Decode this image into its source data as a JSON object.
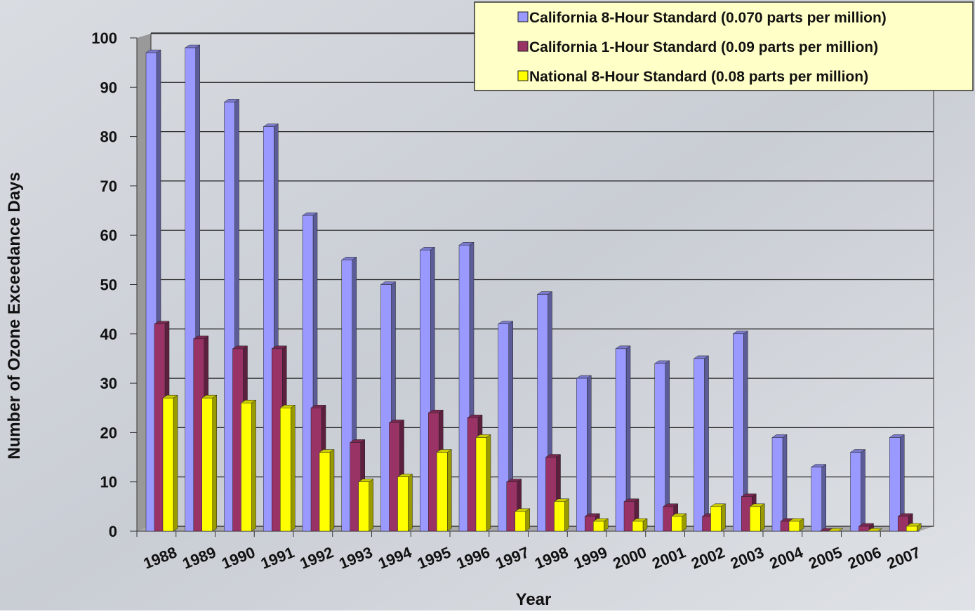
{
  "chart_data": {
    "type": "bar3d",
    "y_label": "Number of Ozone Exceedance Days",
    "x_label": "Year",
    "categories": [
      "1988",
      "1989",
      "1990",
      "1991",
      "1992",
      "1993",
      "1994",
      "1995",
      "1996",
      "1997",
      "1998",
      "1999",
      "2000",
      "2001",
      "2002",
      "2003",
      "2004",
      "2005",
      "2006",
      "2007"
    ],
    "series": [
      {
        "name": "California 8-Hour Standard (0.070 parts per million)",
        "color": "#9999ff",
        "values": [
          97,
          98,
          87,
          82,
          64,
          55,
          50,
          57,
          58,
          42,
          48,
          31,
          37,
          34,
          35,
          40,
          19,
          13,
          16,
          19
        ]
      },
      {
        "name": "California 1-Hour Standard (0.09 parts per million)",
        "color": "#993366",
        "values": [
          42,
          39,
          37,
          37,
          25,
          18,
          22,
          24,
          23,
          10,
          15,
          3,
          6,
          5,
          3,
          7,
          2,
          0,
          1,
          3
        ]
      },
      {
        "name": "National 8-Hour Standard (0.08 parts per million)",
        "color": "#ffff00",
        "values": [
          27,
          27,
          26,
          25,
          16,
          10,
          11,
          16,
          19,
          4,
          6,
          2,
          2,
          3,
          5,
          5,
          2,
          0,
          0,
          1
        ]
      }
    ],
    "ylim": [
      0,
      100
    ],
    "yticks": [
      0,
      10,
      20,
      30,
      40,
      50,
      60,
      70,
      80,
      90,
      100
    ],
    "grid": true,
    "legend": "upper right"
  }
}
